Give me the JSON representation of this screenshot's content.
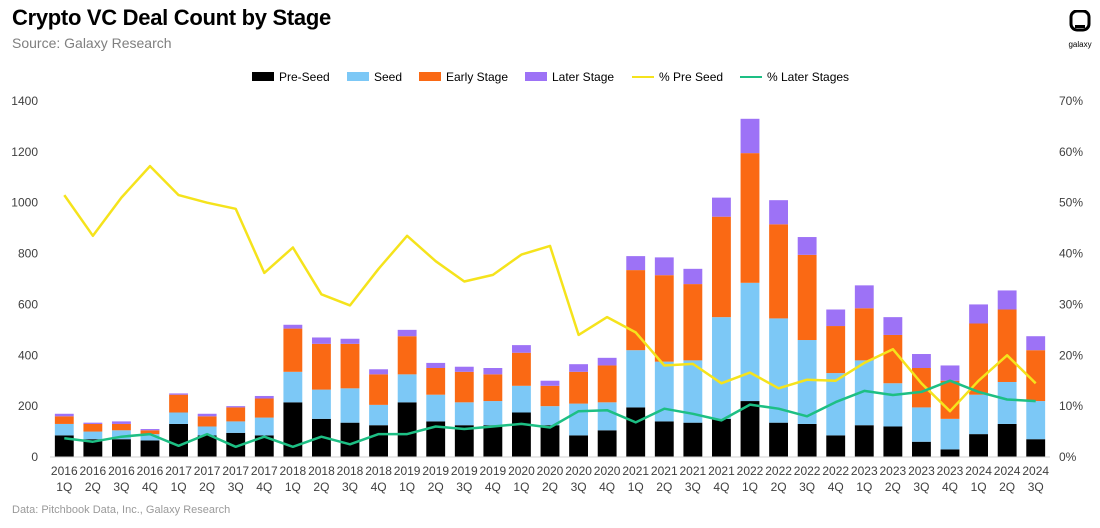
{
  "header": {
    "title": "Crypto VC Deal Count by Stage",
    "subtitle": "Source: Galaxy Research"
  },
  "logo": {
    "word": "galaxy"
  },
  "footer": {
    "note": "Data: Pitchbook Data, Inc., Galaxy Research"
  },
  "colors": {
    "pre_seed": "#000000",
    "seed": "#7cc8f6",
    "early_stage": "#fa6914",
    "later_stage": "#9d72f6",
    "pct_pre_seed": "#f5e31c",
    "pct_later_stages": "#1dbf84"
  },
  "chart_data": {
    "type": "bar",
    "stacked": true,
    "title": "Crypto VC Deal Count by Stage",
    "categories": [
      [
        "2016",
        "1Q"
      ],
      [
        "2016",
        "2Q"
      ],
      [
        "2016",
        "3Q"
      ],
      [
        "2016",
        "4Q"
      ],
      [
        "2017",
        "1Q"
      ],
      [
        "2017",
        "2Q"
      ],
      [
        "2017",
        "3Q"
      ],
      [
        "2017",
        "4Q"
      ],
      [
        "2018",
        "1Q"
      ],
      [
        "2018",
        "2Q"
      ],
      [
        "2018",
        "3Q"
      ],
      [
        "2018",
        "4Q"
      ],
      [
        "2019",
        "1Q"
      ],
      [
        "2019",
        "2Q"
      ],
      [
        "2019",
        "3Q"
      ],
      [
        "2019",
        "4Q"
      ],
      [
        "2020",
        "1Q"
      ],
      [
        "2020",
        "2Q"
      ],
      [
        "2020",
        "3Q"
      ],
      [
        "2020",
        "4Q"
      ],
      [
        "2021",
        "1Q"
      ],
      [
        "2021",
        "2Q"
      ],
      [
        "2021",
        "3Q"
      ],
      [
        "2021",
        "4Q"
      ],
      [
        "2022",
        "1Q"
      ],
      [
        "2022",
        "2Q"
      ],
      [
        "2022",
        "3Q"
      ],
      [
        "2022",
        "4Q"
      ],
      [
        "2023",
        "1Q"
      ],
      [
        "2023",
        "2Q"
      ],
      [
        "2023",
        "3Q"
      ],
      [
        "2023",
        "4Q"
      ],
      [
        "2024",
        "1Q"
      ],
      [
        "2024",
        "2Q"
      ],
      [
        "2024",
        "3Q"
      ]
    ],
    "series": [
      {
        "name": "Pre-Seed",
        "key": "pre_seed",
        "values": [
          85,
          70,
          70,
          65,
          130,
          85,
          95,
          85,
          215,
          150,
          135,
          125,
          215,
          140,
          125,
          125,
          175,
          125,
          85,
          105,
          195,
          140,
          135,
          150,
          220,
          135,
          130,
          85,
          125,
          120,
          60,
          30,
          90,
          130,
          70
        ]
      },
      {
        "name": "Seed",
        "key": "seed",
        "values": [
          45,
          30,
          35,
          25,
          45,
          35,
          45,
          70,
          120,
          115,
          135,
          80,
          110,
          105,
          90,
          95,
          105,
          75,
          125,
          110,
          225,
          235,
          245,
          400,
          465,
          410,
          330,
          245,
          255,
          170,
          135,
          120,
          155,
          165,
          150
        ]
      },
      {
        "name": "Early Stage",
        "key": "early_stage",
        "values": [
          30,
          30,
          25,
          15,
          70,
          40,
          55,
          75,
          170,
          180,
          175,
          120,
          150,
          105,
          120,
          105,
          130,
          80,
          125,
          145,
          315,
          340,
          300,
          395,
          510,
          370,
          335,
          185,
          205,
          190,
          155,
          150,
          280,
          285,
          200
        ]
      },
      {
        "name": "Later Stage",
        "key": "later_stage",
        "values": [
          10,
          5,
          10,
          5,
          5,
          10,
          5,
          10,
          15,
          25,
          20,
          20,
          25,
          20,
          20,
          25,
          30,
          20,
          30,
          30,
          55,
          70,
          60,
          75,
          135,
          95,
          70,
          65,
          90,
          70,
          55,
          60,
          75,
          75,
          55
        ]
      }
    ],
    "line_series": [
      {
        "name": "% Pre Seed",
        "key": "pct_pre_seed",
        "axis": "right",
        "values": [
          51.5,
          43.5,
          51.0,
          57.2,
          51.5,
          50.0,
          48.8,
          36.2,
          41.2,
          32.0,
          29.8,
          37.0,
          43.5,
          38.5,
          34.5,
          35.8,
          39.8,
          41.5,
          24.0,
          27.5,
          24.5,
          18.0,
          18.3,
          14.5,
          16.6,
          13.5,
          15.2,
          15.0,
          18.5,
          21.2,
          14.5,
          9.0,
          15.0,
          20.0,
          14.5
        ]
      },
      {
        "name": "% Later Stages",
        "key": "pct_later_stages",
        "axis": "right",
        "values": [
          3.7,
          3.0,
          4.0,
          4.5,
          2.2,
          4.5,
          2.0,
          4.0,
          2.0,
          4.0,
          2.5,
          4.5,
          4.5,
          6.0,
          5.5,
          6.0,
          6.5,
          5.8,
          9.0,
          9.2,
          6.8,
          9.5,
          8.5,
          7.2,
          10.3,
          9.5,
          8.0,
          10.8,
          13.0,
          12.2,
          12.8,
          15.0,
          12.8,
          11.3,
          11.0
        ]
      }
    ],
    "y_left": {
      "min": 0,
      "max": 1400,
      "step": 200,
      "ticks": [
        "0",
        "200",
        "400",
        "600",
        "800",
        "1000",
        "1200",
        "1400"
      ]
    },
    "y_right": {
      "min": 0,
      "max": 70,
      "step": 10,
      "ticks": [
        "0%",
        "10%",
        "20%",
        "30%",
        "40%",
        "50%",
        "60%",
        "70%"
      ]
    },
    "grid": false,
    "legend_position": "top-center"
  }
}
